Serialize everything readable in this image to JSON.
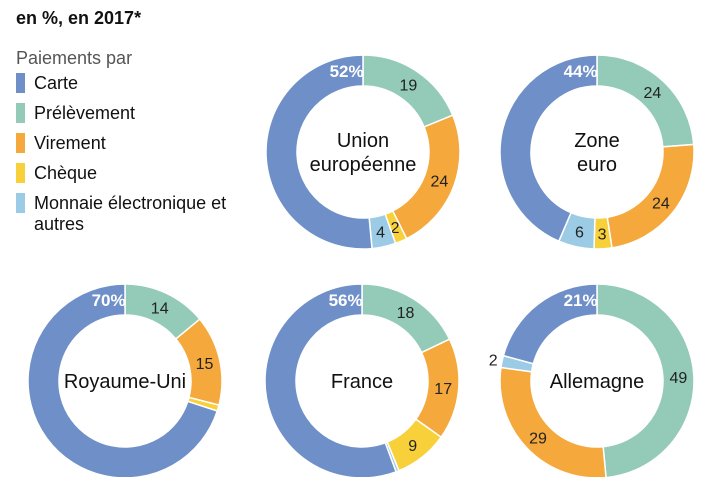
{
  "title": "en %, en 2017*",
  "legend": {
    "heading": "Paiements par",
    "items": [
      {
        "label": "Carte",
        "color": "#6f8fc8"
      },
      {
        "label": "Prélèvement",
        "color": "#93cbb8"
      },
      {
        "label": "Virement",
        "color": "#f5a83c"
      },
      {
        "label": "Chèque",
        "color": "#f8d03a"
      },
      {
        "label": "Monnaie électronique et autres",
        "color": "#9ccbe6"
      }
    ]
  },
  "chart_data": {
    "type": "pie",
    "variant": "donut",
    "categories": [
      "Carte",
      "Prélèvement",
      "Virement",
      "Chèque",
      "Monnaie électronique et autres"
    ],
    "charts": [
      {
        "name": "Union européenne",
        "values": [
          52,
          19,
          24,
          2,
          4
        ],
        "labels": [
          "52%",
          "19",
          "24",
          "2",
          "4"
        ]
      },
      {
        "name": "Zone euro",
        "values": [
          44,
          24,
          24,
          3,
          6
        ],
        "labels": [
          "44%",
          "24",
          "24",
          "3",
          "6"
        ]
      },
      {
        "name": "Royaume-Uni",
        "values": [
          70,
          14,
          15,
          1,
          0
        ],
        "labels": [
          "70%",
          "14",
          "15",
          "",
          ""
        ]
      },
      {
        "name": "France",
        "values": [
          56,
          18,
          17,
          9,
          0.5
        ],
        "labels": [
          "56%",
          "18",
          "17",
          "9",
          ""
        ]
      },
      {
        "name": "Allemagne",
        "values": [
          21,
          49,
          29,
          0,
          2
        ],
        "labels": [
          "21%",
          "49",
          "29",
          "",
          "2"
        ]
      }
    ]
  }
}
